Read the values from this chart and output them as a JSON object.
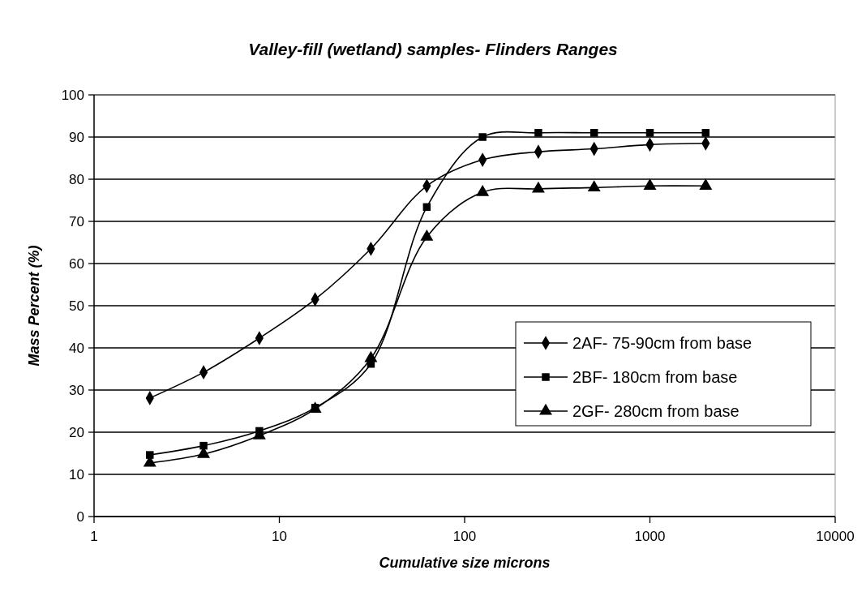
{
  "chart_data": {
    "type": "line",
    "title": "Valley-fill (wetland) samples- Flinders Ranges",
    "xlabel": "Cumulative size microns",
    "ylabel": "Mass Percent (%)",
    "x": [
      2,
      3.9,
      7.8,
      15.6,
      31.2,
      62.5,
      125,
      250,
      500,
      1000,
      2000
    ],
    "series": [
      {
        "name": "2AF- 75-90cm from base",
        "color": "#000000",
        "marker": "diamond",
        "values": [
          28.1,
          34.2,
          42.3,
          51.5,
          63.5,
          78.4,
          84.6,
          86.5,
          87.2,
          88.2,
          88.5
        ]
      },
      {
        "name": "2BF- 180cm from base",
        "color": "#000000",
        "marker": "square",
        "values": [
          14.6,
          16.8,
          20.3,
          25.8,
          36.2,
          73.4,
          90,
          91,
          91,
          91,
          91
        ]
      },
      {
        "name": "2GF- 280cm from base",
        "color": "#000000",
        "marker": "triangle",
        "values": [
          12.7,
          14.8,
          19.2,
          25.5,
          37.5,
          66.3,
          76.9,
          77.7,
          78,
          78.4,
          78.4
        ]
      }
    ],
    "log": "x",
    "xlim": [
      1,
      10000
    ],
    "xticks": [
      1,
      10,
      100,
      1000,
      10000
    ],
    "ylim": [
      0,
      100
    ],
    "yticks": [
      0,
      10,
      20,
      30,
      40,
      50,
      60,
      70,
      80,
      90,
      100
    ],
    "grid": "y",
    "legend": "right",
    "line_style": "solid"
  }
}
